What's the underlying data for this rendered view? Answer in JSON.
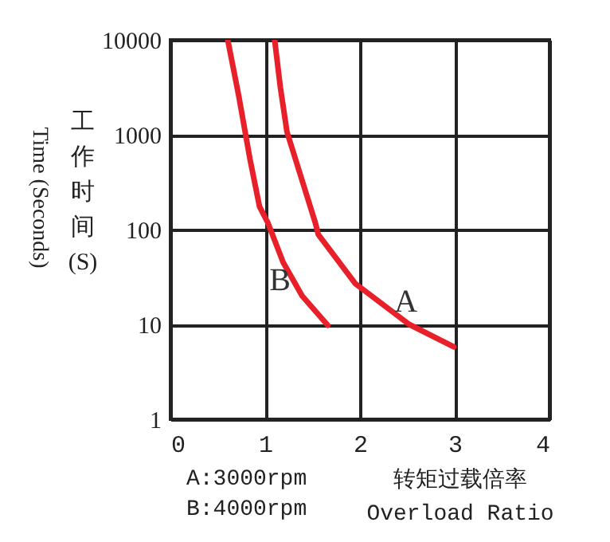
{
  "chart_data": {
    "type": "line",
    "xlabel": "转矩过载倍率\nOverload Ratio",
    "ylabel": "工作时间(S)",
    "annotations": [
      "Time (Seconds)",
      "A:3000rpm",
      "B:4000rpm"
    ],
    "xlim": [
      0,
      4
    ],
    "xticks": [
      0,
      1,
      2,
      3,
      4
    ],
    "ylim": [
      1,
      10000
    ],
    "yticks": [
      1,
      10,
      100,
      1000,
      10000
    ],
    "log": "y",
    "grid": true,
    "marker": "none",
    "line_style": "solid",
    "series": [
      {
        "name": "A",
        "color": "#e8202a",
        "x": [
          1.1,
          1.16,
          1.23,
          1.53,
          1.56,
          1.95,
          2.52,
          2.99
        ],
        "values": [
          10000,
          3160,
          1070,
          117,
          89,
          27,
          10,
          5.8
        ]
      },
      {
        "name": "B",
        "color": "#e8202a",
        "x": [
          0.605,
          0.72,
          0.84,
          0.94,
          1.03,
          1.19,
          1.39,
          1.66
        ],
        "values": [
          10000,
          2600,
          550,
          175,
          117,
          45,
          20,
          9.8
        ]
      }
    ]
  }
}
